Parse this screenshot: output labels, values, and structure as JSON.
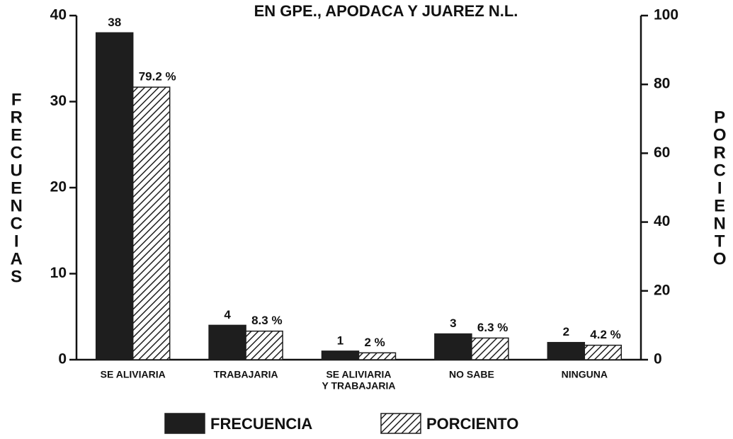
{
  "chart_data": {
    "type": "bar",
    "title": "EN GPE., APODACA Y JUAREZ N.L.",
    "ylabel": "FRECUENCIAS",
    "y2label": "PORCIENTO",
    "categories": [
      [
        "SE ALIVIARIA"
      ],
      [
        "TRABAJARIA"
      ],
      [
        "SE ALIVIARIA",
        "Y TRABAJARIA"
      ],
      [
        "NO SABE"
      ],
      [
        "NINGUNA"
      ]
    ],
    "series": [
      {
        "name": "FRECUENCIA",
        "color": "#1e1e1e",
        "fill_style": "solid",
        "values": [
          38,
          4,
          1,
          3,
          2
        ]
      },
      {
        "name": "PORCIENTO",
        "color": "#1e1e1e",
        "fill_style": "hatch",
        "axis": "y2",
        "values": [
          79.2,
          8.3,
          2,
          6.3,
          4.2
        ],
        "value_labels": [
          "79.2 %",
          "8.3 %",
          "2 %",
          "6.3 %",
          "4.2 %"
        ]
      }
    ],
    "ylim": [
      0,
      40
    ],
    "yticks": [
      0,
      10,
      20,
      30,
      40
    ],
    "y2lim": [
      0,
      100
    ],
    "y2ticks": [
      0,
      20,
      40,
      60,
      80,
      100
    ],
    "legend": "bottom"
  }
}
